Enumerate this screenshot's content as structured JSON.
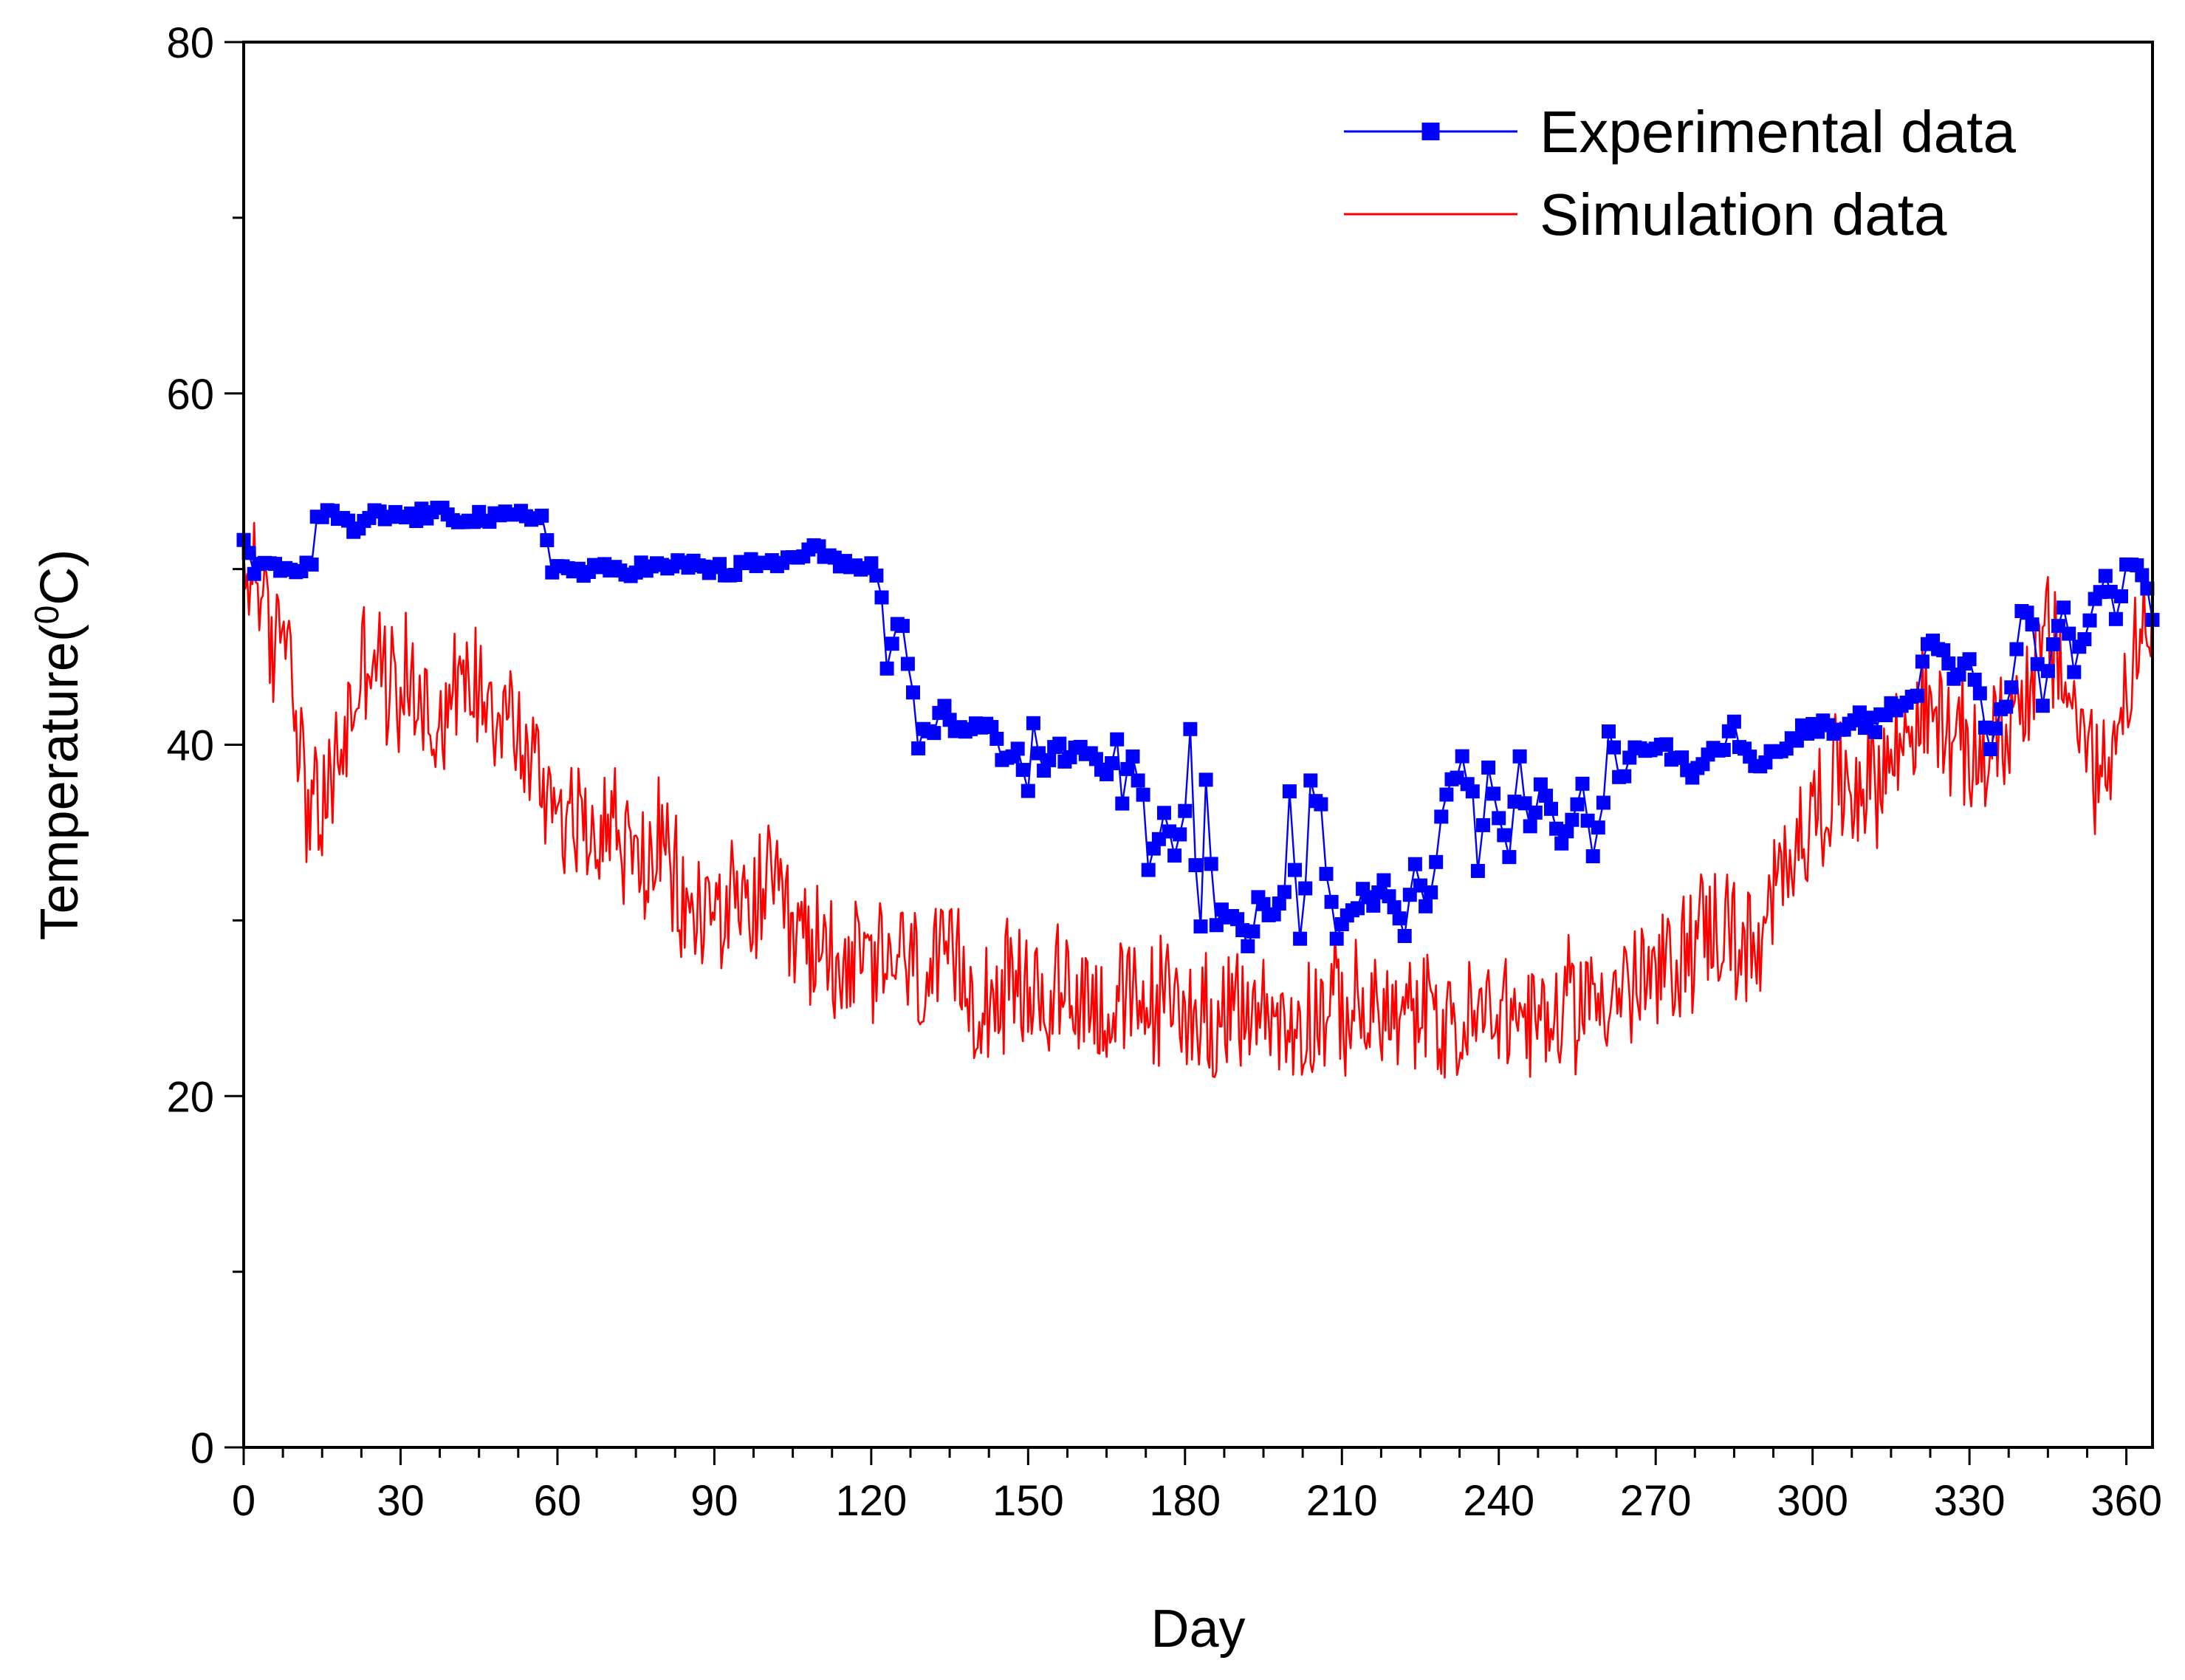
{
  "chart_data": {
    "type": "line",
    "title": "",
    "xlabel": "Day",
    "ylabel": "Temperature(⁰C)",
    "ylabel_parts": {
      "main": "Temperature(",
      "sup": "0",
      "tail": "C)"
    },
    "xlim": [
      0,
      365
    ],
    "ylim": [
      0,
      80
    ],
    "xticks": [
      0,
      30,
      60,
      90,
      120,
      150,
      180,
      210,
      240,
      270,
      300,
      330,
      360
    ],
    "yticks": [
      0,
      20,
      40,
      60,
      80
    ],
    "xtick_labels": [
      "0",
      "30",
      "60",
      "90",
      "120",
      "150",
      "180",
      "210",
      "240",
      "270",
      "300",
      "330",
      "360"
    ],
    "ytick_labels": [
      "0",
      "20",
      "40",
      "60",
      "80"
    ],
    "grid": false,
    "legend_position": "top-right",
    "series": [
      {
        "name": "Experimental data",
        "color": "#0000ff",
        "marker": "square",
        "anchors": [
          [
            0,
            52
          ],
          [
            2,
            50
          ],
          [
            4,
            50
          ],
          [
            8,
            50
          ],
          [
            12,
            50
          ],
          [
            13,
            50.5
          ],
          [
            14,
            53
          ],
          [
            18,
            53
          ],
          [
            20,
            52.5
          ],
          [
            22,
            52
          ],
          [
            24,
            53
          ],
          [
            28,
            53
          ],
          [
            32,
            53
          ],
          [
            36,
            53.2
          ],
          [
            40,
            53
          ],
          [
            45,
            53
          ],
          [
            48,
            52.8
          ],
          [
            52,
            53
          ],
          [
            55,
            53
          ],
          [
            57,
            53
          ],
          [
            58,
            52
          ],
          [
            59,
            50
          ],
          [
            62,
            50
          ],
          [
            66,
            49.8
          ],
          [
            70,
            50
          ],
          [
            75,
            50
          ],
          [
            78,
            50.2
          ],
          [
            80,
            50
          ],
          [
            85,
            50.3
          ],
          [
            90,
            50
          ],
          [
            93,
            49.8
          ],
          [
            96,
            50.2
          ],
          [
            100,
            50.3
          ],
          [
            105,
            50.5
          ],
          [
            108,
            51
          ],
          [
            110,
            51
          ],
          [
            113,
            50.8
          ],
          [
            116,
            50
          ],
          [
            119,
            50
          ],
          [
            120,
            50.5
          ],
          [
            122,
            48
          ],
          [
            123,
            44
          ],
          [
            124,
            45.5
          ],
          [
            125,
            46.5
          ],
          [
            126,
            46.5
          ],
          [
            128,
            43
          ],
          [
            129,
            39.5
          ],
          [
            130,
            41
          ],
          [
            132,
            41
          ],
          [
            134,
            42
          ],
          [
            136,
            41
          ],
          [
            140,
            41
          ],
          [
            143,
            41
          ],
          [
            145,
            39
          ],
          [
            148,
            40
          ],
          [
            150,
            37.5
          ],
          [
            151,
            41
          ],
          [
            153,
            38.5
          ],
          [
            155,
            40
          ],
          [
            158,
            39
          ],
          [
            160,
            40
          ],
          [
            163,
            39
          ],
          [
            165,
            38.5
          ],
          [
            167,
            40
          ],
          [
            168,
            37
          ],
          [
            170,
            39.5
          ],
          [
            172,
            37
          ],
          [
            173,
            32.5
          ],
          [
            174,
            34
          ],
          [
            176,
            36
          ],
          [
            178,
            33.5
          ],
          [
            180,
            36
          ],
          [
            181,
            40.5
          ],
          [
            182,
            33.5
          ],
          [
            183,
            30
          ],
          [
            184,
            38
          ],
          [
            185,
            33
          ],
          [
            186,
            30
          ],
          [
            188,
            30.5
          ],
          [
            190,
            30
          ],
          [
            192,
            28.5
          ],
          [
            194,
            31
          ],
          [
            197,
            30
          ],
          [
            199,
            32
          ],
          [
            200,
            37.5
          ],
          [
            202,
            29
          ],
          [
            203,
            32
          ],
          [
            204,
            38
          ],
          [
            205,
            37
          ],
          [
            206,
            37
          ],
          [
            207,
            33
          ],
          [
            209,
            29
          ],
          [
            211,
            30
          ],
          [
            214,
            31.5
          ],
          [
            216,
            31
          ],
          [
            218,
            32.5
          ],
          [
            220,
            31
          ],
          [
            222,
            29
          ],
          [
            224,
            33.5
          ],
          [
            226,
            30.5
          ],
          [
            228,
            33
          ],
          [
            229,
            36
          ],
          [
            231,
            38
          ],
          [
            233,
            39
          ],
          [
            235,
            37
          ],
          [
            236,
            33
          ],
          [
            238,
            38.5
          ],
          [
            240,
            35.5
          ],
          [
            242,
            34
          ],
          [
            244,
            39
          ],
          [
            246,
            35
          ],
          [
            248,
            38
          ],
          [
            250,
            36
          ],
          [
            252,
            34
          ],
          [
            254,
            36
          ],
          [
            256,
            38
          ],
          [
            258,
            34
          ],
          [
            260,
            37
          ],
          [
            261,
            41
          ],
          [
            263,
            38
          ],
          [
            265,
            39
          ],
          [
            267,
            40
          ],
          [
            270,
            40
          ],
          [
            273,
            39.5
          ],
          [
            275,
            39
          ],
          [
            277,
            38.5
          ],
          [
            280,
            39.5
          ],
          [
            283,
            40
          ],
          [
            285,
            41
          ],
          [
            287,
            39.5
          ],
          [
            290,
            39
          ],
          [
            293,
            39.5
          ],
          [
            296,
            40.5
          ],
          [
            300,
            41
          ],
          [
            303,
            41
          ],
          [
            306,
            40.5
          ],
          [
            309,
            41.5
          ],
          [
            312,
            41
          ],
          [
            315,
            42
          ],
          [
            318,
            42.5
          ],
          [
            320,
            43
          ],
          [
            322,
            46
          ],
          [
            325,
            45.5
          ],
          [
            327,
            44
          ],
          [
            330,
            44.5
          ],
          [
            332,
            43
          ],
          [
            334,
            39.5
          ],
          [
            336,
            42
          ],
          [
            338,
            43
          ],
          [
            340,
            48
          ],
          [
            342,
            47
          ],
          [
            344,
            42
          ],
          [
            346,
            46
          ],
          [
            348,
            48
          ],
          [
            350,
            44.5
          ],
          [
            352,
            46
          ],
          [
            354,
            48
          ],
          [
            356,
            50
          ],
          [
            358,
            47
          ],
          [
            360,
            50.5
          ],
          [
            362,
            50
          ],
          [
            364,
            49
          ],
          [
            365,
            47.5
          ]
        ]
      },
      {
        "name": "Simulation data",
        "color": "#ff0000",
        "marker": "none",
        "anchors": [
          [
            0,
            48
          ],
          [
            2,
            51
          ],
          [
            5,
            45
          ],
          [
            8,
            48
          ],
          [
            12,
            37
          ],
          [
            15,
            36
          ],
          [
            20,
            41
          ],
          [
            24,
            46
          ],
          [
            28,
            43
          ],
          [
            32,
            44
          ],
          [
            36,
            41
          ],
          [
            40,
            43
          ],
          [
            45,
            44
          ],
          [
            50,
            42
          ],
          [
            55,
            39
          ],
          [
            60,
            37
          ],
          [
            65,
            35
          ],
          [
            70,
            36
          ],
          [
            75,
            33
          ],
          [
            80,
            34
          ],
          [
            85,
            30
          ],
          [
            90,
            31
          ],
          [
            95,
            30
          ],
          [
            100,
            32
          ],
          [
            105,
            29
          ],
          [
            110,
            28.5
          ],
          [
            115,
            28
          ],
          [
            120,
            27
          ],
          [
            125,
            28
          ],
          [
            130,
            26.5
          ],
          [
            135,
            27
          ],
          [
            140,
            26
          ],
          [
            145,
            26
          ],
          [
            150,
            25.5
          ],
          [
            155,
            26
          ],
          [
            160,
            26
          ],
          [
            165,
            25
          ],
          [
            170,
            25
          ],
          [
            175,
            25.5
          ],
          [
            180,
            25
          ],
          [
            185,
            24.5
          ],
          [
            190,
            24.5
          ],
          [
            195,
            25
          ],
          [
            200,
            24
          ],
          [
            205,
            25
          ],
          [
            210,
            25
          ],
          [
            215,
            24.5
          ],
          [
            220,
            24.5
          ],
          [
            225,
            24.5
          ],
          [
            230,
            24
          ],
          [
            235,
            24
          ],
          [
            240,
            25
          ],
          [
            245,
            24.5
          ],
          [
            250,
            24
          ],
          [
            255,
            25.5
          ],
          [
            260,
            26
          ],
          [
            265,
            26
          ],
          [
            270,
            26.5
          ],
          [
            275,
            28
          ],
          [
            280,
            30
          ],
          [
            285,
            29
          ],
          [
            290,
            27.5
          ],
          [
            295,
            34
          ],
          [
            300,
            36
          ],
          [
            305,
            38
          ],
          [
            310,
            38
          ],
          [
            315,
            39
          ],
          [
            320,
            42
          ],
          [
            325,
            41
          ],
          [
            330,
            39
          ],
          [
            335,
            40
          ],
          [
            340,
            43
          ],
          [
            345,
            46
          ],
          [
            348,
            44
          ],
          [
            352,
            40
          ],
          [
            356,
            38
          ],
          [
            360,
            44
          ],
          [
            363,
            46
          ],
          [
            365,
            45
          ]
        ],
        "noise_amplitude": 4.5,
        "samples_per_day": 3
      }
    ]
  }
}
